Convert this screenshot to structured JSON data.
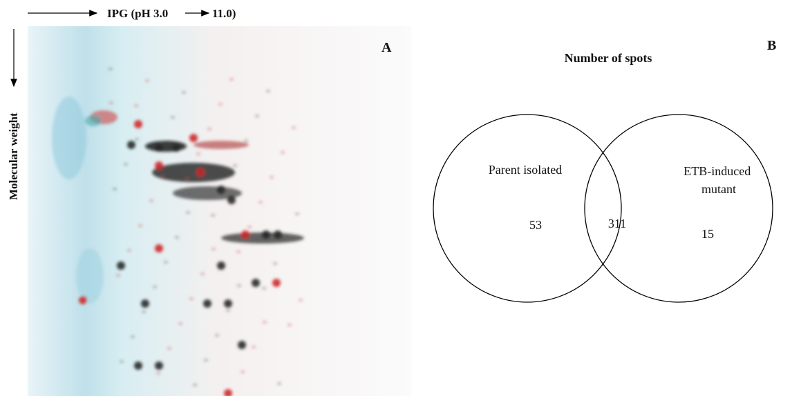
{
  "panel_a": {
    "label": "A",
    "x_axis": {
      "start": "IPG (pH 3.0",
      "end": "11.0)"
    },
    "y_axis": "Molecular weight"
  },
  "panel_b": {
    "label": "B",
    "title": "Number of spots",
    "sets": [
      {
        "label_lines": [
          "Parent isolated"
        ],
        "count": 53
      },
      {
        "label_lines": [
          "ETB-induced",
          "mutant"
        ],
        "count": 15
      }
    ],
    "overlap": 311
  }
}
